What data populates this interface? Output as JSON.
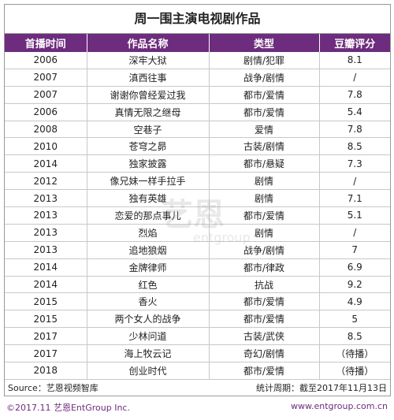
{
  "title": "周一围主演电视剧作品",
  "table": {
    "header": [
      "首播时间",
      "作品名称",
      "类型",
      "豆瓣评分"
    ],
    "rows": [
      [
        "2006",
        "深牢大狱",
        "剧情/犯罪",
        "8.1"
      ],
      [
        "2007",
        "滇西往事",
        "战争/剧情",
        "/"
      ],
      [
        "2007",
        "谢谢你曾经爱过我",
        "都市/爱情",
        "7.8"
      ],
      [
        "2006",
        "真情无限之继母",
        "都市/爱情",
        "5.4"
      ],
      [
        "2008",
        "空巷子",
        "爱情",
        "7.8"
      ],
      [
        "2010",
        "苍穹之昴",
        "古装/剧情",
        "8.5"
      ],
      [
        "2014",
        "独家披露",
        "都市/悬疑",
        "7.3"
      ],
      [
        "2012",
        "像兄妹一样手拉手",
        "剧情",
        "/"
      ],
      [
        "2013",
        "独有英雄",
        "剧情",
        "7.1"
      ],
      [
        "2013",
        "恋爱的那点事儿",
        "都市/爱情",
        "5.1"
      ],
      [
        "2013",
        "烈焰",
        "剧情",
        "/"
      ],
      [
        "2013",
        "追地狼烟",
        "战争/剧情",
        "7"
      ],
      [
        "2014",
        "金牌律师",
        "都市/律政",
        "6.9"
      ],
      [
        "2014",
        "红色",
        "抗战",
        "9.2"
      ],
      [
        "2015",
        "香火",
        "都市/爱情",
        "4.9"
      ],
      [
        "2015",
        "两个女人的战争",
        "都市/爱情",
        "5"
      ],
      [
        "2017",
        "少林问道",
        "古装/武侠",
        "8.5"
      ],
      [
        "2017",
        "海上牧云记",
        "奇幻/剧情",
        "（待播）"
      ],
      [
        "2018",
        "创业时代",
        "都市/爱情",
        "（待播）"
      ]
    ]
  },
  "watermark": {
    "brand": "艺恩",
    "sub": "entgroup"
  },
  "source": "Source：艺恩视频智库",
  "period": "统计周期：截至2017年11月13日",
  "copyright": "©2017.11 艺恩EntGroup Inc.",
  "website": "www.entgroup.com.cn"
}
